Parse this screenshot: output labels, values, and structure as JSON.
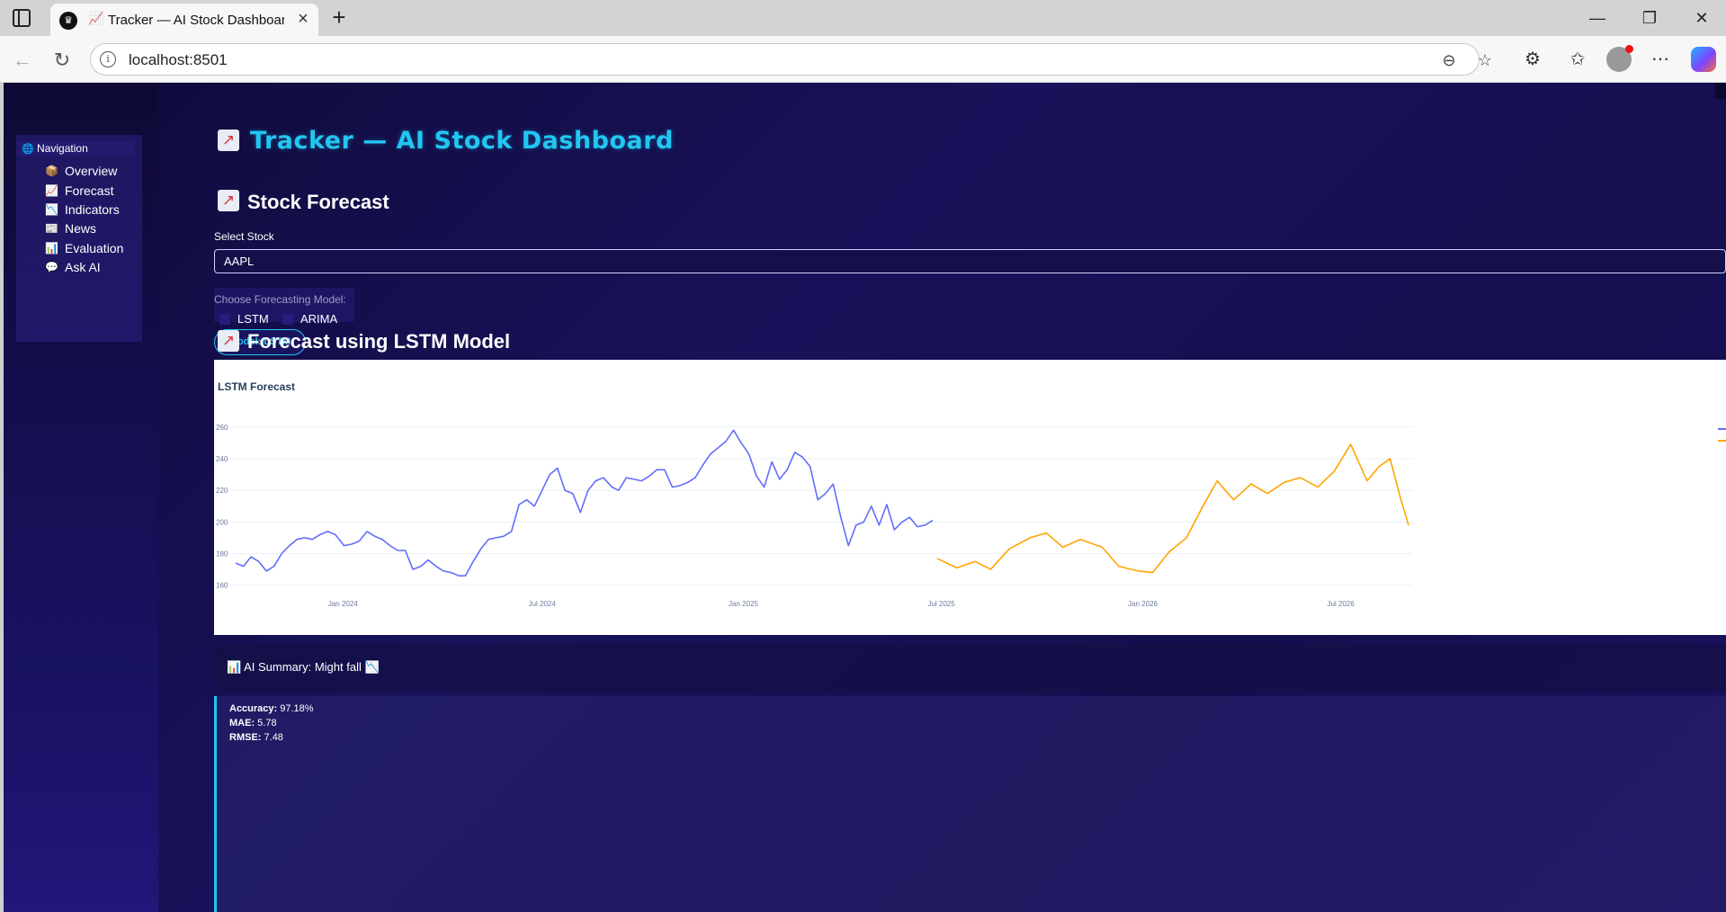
{
  "browser": {
    "tab_title": "Tracker — AI Stock Dashboard",
    "tab_icon": "chart-increasing-emoji",
    "url": "localhost:8501"
  },
  "app": {
    "title": "Tracker — AI Stock Dashboard",
    "accent_color": "#22c6f2",
    "background_color": "#140f4e"
  },
  "sidebar": {
    "heading": "Navigation",
    "items": [
      {
        "label": "Overview",
        "emoji": "📦"
      },
      {
        "label": "Forecast",
        "emoji": "📈"
      },
      {
        "label": "Indicators",
        "emoji": "📉"
      },
      {
        "label": "News",
        "emoji": "📰"
      },
      {
        "label": "Evaluation",
        "emoji": "📊"
      },
      {
        "label": "Ask AI",
        "emoji": "💬"
      }
    ]
  },
  "main": {
    "section_title": "Stock Forecast",
    "select_label": "Select Stock",
    "selected_stock": "AAPL",
    "model_label": "Choose Forecasting Model:",
    "model_options": [
      "LSTM",
      "ARIMA"
    ],
    "model_badge": "Model: LSTM",
    "forecast_title": "Forecast using LSTM Model",
    "summary": "AI Summary: Might fall",
    "metrics": [
      {
        "name": "Accuracy:",
        "value": "97.18%"
      },
      {
        "name": "MAE:",
        "value": "5.78"
      },
      {
        "name": "RMSE:",
        "value": "7.48"
      }
    ]
  },
  "chart_data": {
    "type": "line",
    "title": "LSTM Forecast",
    "xlabel": "",
    "ylabel": "",
    "ylim": [
      157,
      265
    ],
    "yticks": [
      160,
      180,
      200,
      220,
      240,
      260
    ],
    "xticks": [
      {
        "label": "Jan 2024",
        "date": "2024-01-01"
      },
      {
        "label": "Jul 2024",
        "date": "2024-07-01"
      },
      {
        "label": "Jan 2025",
        "date": "2025-01-01"
      },
      {
        "label": "Jul 2025",
        "date": "2025-07-01"
      },
      {
        "label": "Jan 2026",
        "date": "2026-01-01"
      },
      {
        "label": "Jul 2026",
        "date": "2026-07-01"
      }
    ],
    "xlim": [
      "2023-09-20",
      "2026-09-05"
    ],
    "grid": true,
    "series": [
      {
        "color": "#636efa",
        "points": [
          [
            "2023-09-25",
            174
          ],
          [
            "2023-10-02",
            172
          ],
          [
            "2023-10-09",
            178
          ],
          [
            "2023-10-16",
            175
          ],
          [
            "2023-10-23",
            169
          ],
          [
            "2023-10-30",
            172
          ],
          [
            "2023-11-06",
            180
          ],
          [
            "2023-11-13",
            185
          ],
          [
            "2023-11-20",
            189
          ],
          [
            "2023-11-27",
            190
          ],
          [
            "2023-12-04",
            189
          ],
          [
            "2023-12-11",
            192
          ],
          [
            "2023-12-18",
            194
          ],
          [
            "2023-12-25",
            192
          ],
          [
            "2024-01-02",
            185
          ],
          [
            "2024-01-09",
            186
          ],
          [
            "2024-01-16",
            188
          ],
          [
            "2024-01-23",
            194
          ],
          [
            "2024-01-30",
            191
          ],
          [
            "2024-02-06",
            189
          ],
          [
            "2024-02-13",
            185
          ],
          [
            "2024-02-20",
            182
          ],
          [
            "2024-02-27",
            182
          ],
          [
            "2024-03-05",
            170
          ],
          [
            "2024-03-12",
            172
          ],
          [
            "2024-03-19",
            176
          ],
          [
            "2024-03-26",
            172
          ],
          [
            "2024-04-02",
            169
          ],
          [
            "2024-04-09",
            168
          ],
          [
            "2024-04-16",
            166
          ],
          [
            "2024-04-22",
            166
          ],
          [
            "2024-04-29",
            175
          ],
          [
            "2024-05-06",
            183
          ],
          [
            "2024-05-13",
            189
          ],
          [
            "2024-05-20",
            190
          ],
          [
            "2024-05-27",
            191
          ],
          [
            "2024-06-03",
            194
          ],
          [
            "2024-06-10",
            211
          ],
          [
            "2024-06-17",
            214
          ],
          [
            "2024-06-24",
            210
          ],
          [
            "2024-07-01",
            220
          ],
          [
            "2024-07-08",
            230
          ],
          [
            "2024-07-15",
            234
          ],
          [
            "2024-07-22",
            220
          ],
          [
            "2024-07-29",
            218
          ],
          [
            "2024-08-05",
            206
          ],
          [
            "2024-08-12",
            220
          ],
          [
            "2024-08-19",
            226
          ],
          [
            "2024-08-26",
            228
          ],
          [
            "2024-09-03",
            222
          ],
          [
            "2024-09-09",
            220
          ],
          [
            "2024-09-16",
            228
          ],
          [
            "2024-09-23",
            227
          ],
          [
            "2024-09-30",
            226
          ],
          [
            "2024-10-07",
            229
          ],
          [
            "2024-10-14",
            233
          ],
          [
            "2024-10-21",
            233
          ],
          [
            "2024-10-28",
            222
          ],
          [
            "2024-11-04",
            223
          ],
          [
            "2024-11-11",
            225
          ],
          [
            "2024-11-18",
            228
          ],
          [
            "2024-11-25",
            236
          ],
          [
            "2024-12-02",
            243
          ],
          [
            "2024-12-09",
            247
          ],
          [
            "2024-12-16",
            251
          ],
          [
            "2024-12-23",
            258
          ],
          [
            "2024-12-30",
            250
          ],
          [
            "2025-01-06",
            243
          ],
          [
            "2025-01-13",
            229
          ],
          [
            "2025-01-20",
            222
          ],
          [
            "2025-01-27",
            238
          ],
          [
            "2025-02-03",
            227
          ],
          [
            "2025-02-10",
            233
          ],
          [
            "2025-02-17",
            244
          ],
          [
            "2025-02-24",
            241
          ],
          [
            "2025-03-03",
            235
          ],
          [
            "2025-03-10",
            214
          ],
          [
            "2025-03-17",
            218
          ],
          [
            "2025-03-24",
            224
          ],
          [
            "2025-03-31",
            203
          ],
          [
            "2025-04-07",
            185
          ],
          [
            "2025-04-14",
            198
          ],
          [
            "2025-04-21",
            200
          ],
          [
            "2025-04-28",
            210
          ],
          [
            "2025-05-05",
            198
          ],
          [
            "2025-05-12",
            211
          ],
          [
            "2025-05-19",
            195
          ],
          [
            "2025-05-26",
            200
          ],
          [
            "2025-06-02",
            203
          ],
          [
            "2025-06-09",
            197
          ],
          [
            "2025-06-16",
            198
          ],
          [
            "2025-06-23",
            201
          ]
        ]
      },
      {
        "color": "#ffa500",
        "points": [
          [
            "2025-06-27",
            177
          ],
          [
            "2025-07-15",
            171
          ],
          [
            "2025-08-01",
            175
          ],
          [
            "2025-08-15",
            170
          ],
          [
            "2025-09-01",
            183
          ],
          [
            "2025-09-20",
            190
          ],
          [
            "2025-10-05",
            193
          ],
          [
            "2025-10-20",
            184
          ],
          [
            "2025-11-05",
            189
          ],
          [
            "2025-11-25",
            184
          ],
          [
            "2025-12-10",
            172
          ],
          [
            "2025-12-28",
            169
          ],
          [
            "2026-01-10",
            168
          ],
          [
            "2026-01-25",
            181
          ],
          [
            "2026-02-10",
            190
          ],
          [
            "2026-02-25",
            210
          ],
          [
            "2026-03-10",
            226
          ],
          [
            "2026-03-25",
            214
          ],
          [
            "2026-04-10",
            224
          ],
          [
            "2026-04-25",
            218
          ],
          [
            "2026-05-10",
            225
          ],
          [
            "2026-05-25",
            228
          ],
          [
            "2026-06-10",
            222
          ],
          [
            "2026-06-25",
            232
          ],
          [
            "2026-07-10",
            249
          ],
          [
            "2026-07-25",
            226
          ],
          [
            "2026-08-05",
            235
          ],
          [
            "2026-08-15",
            240
          ],
          [
            "2026-08-25",
            214
          ],
          [
            "2026-09-01",
            198
          ]
        ]
      }
    ]
  }
}
